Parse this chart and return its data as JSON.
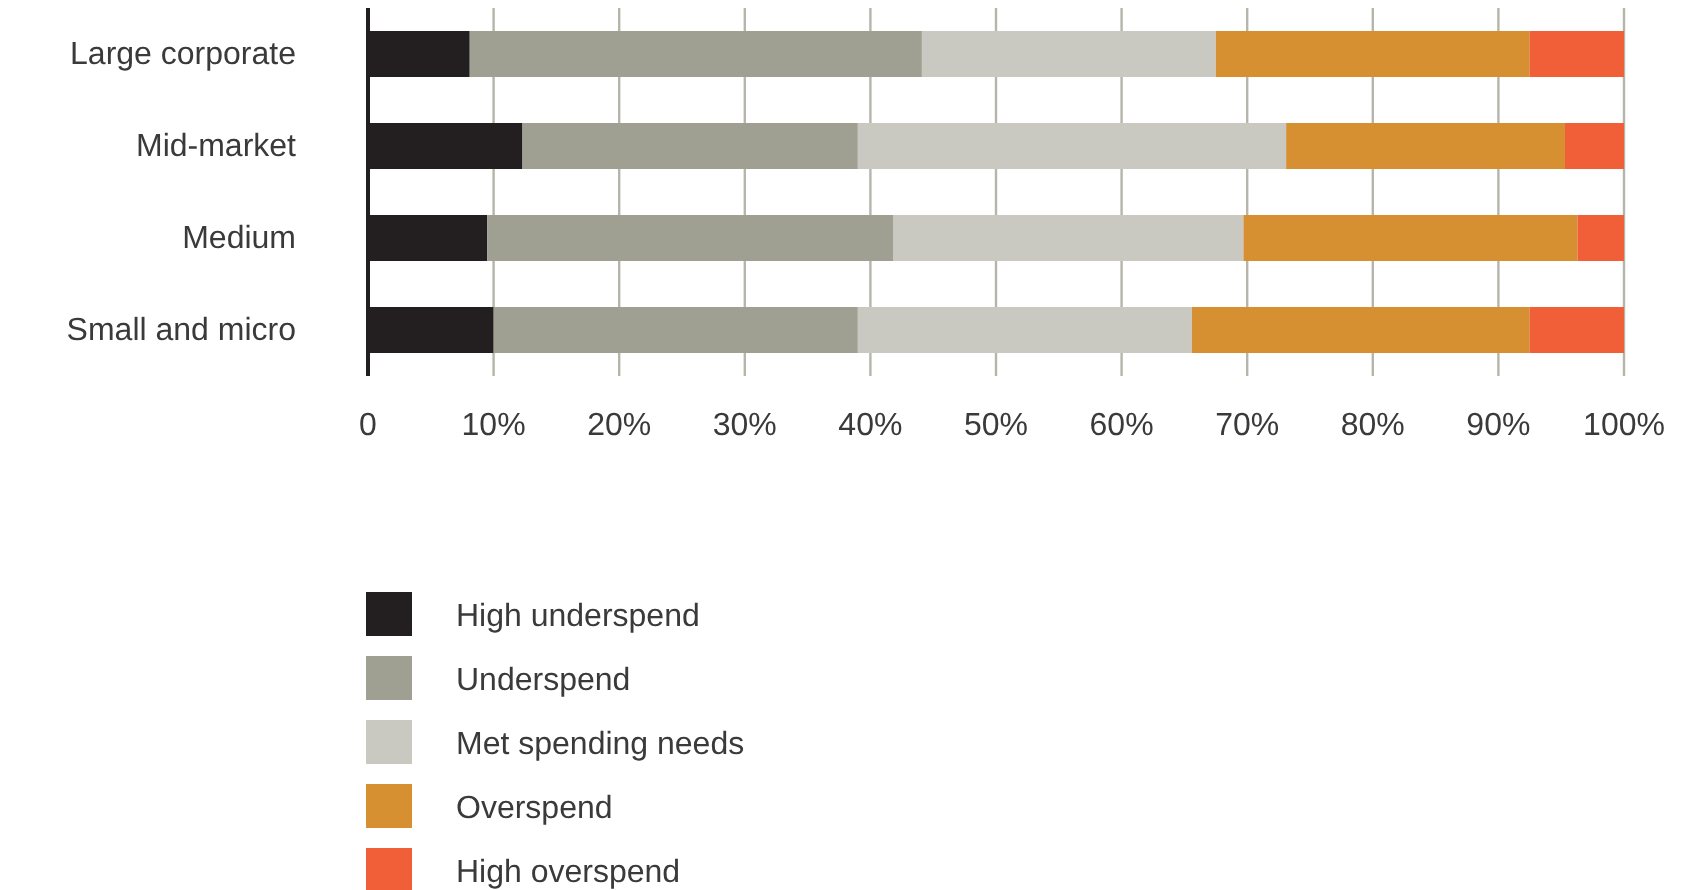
{
  "chart_data": {
    "type": "bar",
    "orientation": "horizontal",
    "stacked": true,
    "categories": [
      "Large corporate",
      "Mid-market",
      "Medium",
      "Small and micro"
    ],
    "series": [
      {
        "name": "High underspend",
        "color": "#231f20",
        "values": [
          8.1,
          12.3,
          9.5,
          10
        ]
      },
      {
        "name": "Underspend",
        "color": "#a0a092",
        "values": [
          36,
          26.7,
          32.3,
          29
        ]
      },
      {
        "name": "Met spending needs",
        "color": "#cac9c1",
        "values": [
          23.4,
          34.1,
          27.9,
          26.6
        ]
      },
      {
        "name": "Overspend",
        "color": "#d68f31",
        "values": [
          25,
          22.2,
          26.6,
          26.9
        ]
      },
      {
        "name": "High overspend",
        "color": "#f05f38",
        "values": [
          7.5,
          4.7,
          3.7,
          7.5
        ]
      }
    ],
    "xlim": [
      0,
      100
    ],
    "xticks": [
      0,
      {
        "value": 10,
        "label": "10%"
      },
      {
        "value": 20,
        "label": "20%"
      },
      {
        "value": 30,
        "label": "30%"
      },
      {
        "value": 40,
        "label": "40%"
      },
      {
        "value": 50,
        "label": "50%"
      },
      {
        "value": 60,
        "label": "60%"
      },
      {
        "value": 70,
        "label": "70%"
      },
      {
        "value": 80,
        "label": "80%"
      },
      {
        "value": 90,
        "label": "90%"
      },
      {
        "value": 100,
        "label": "100%"
      }
    ],
    "grid": "x",
    "legend": "bottom"
  }
}
